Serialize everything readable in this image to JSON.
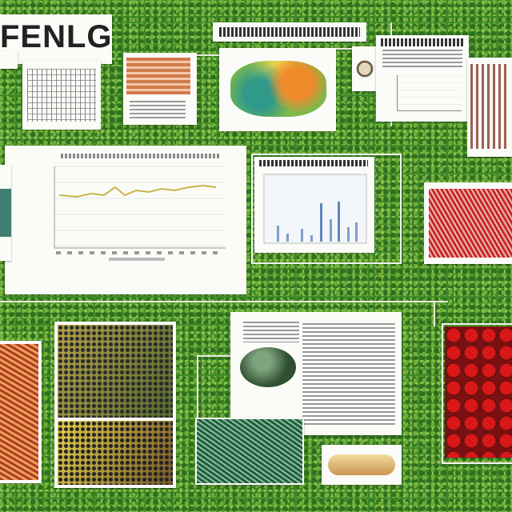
{
  "header": {
    "title": "FENLGC"
  }
}
